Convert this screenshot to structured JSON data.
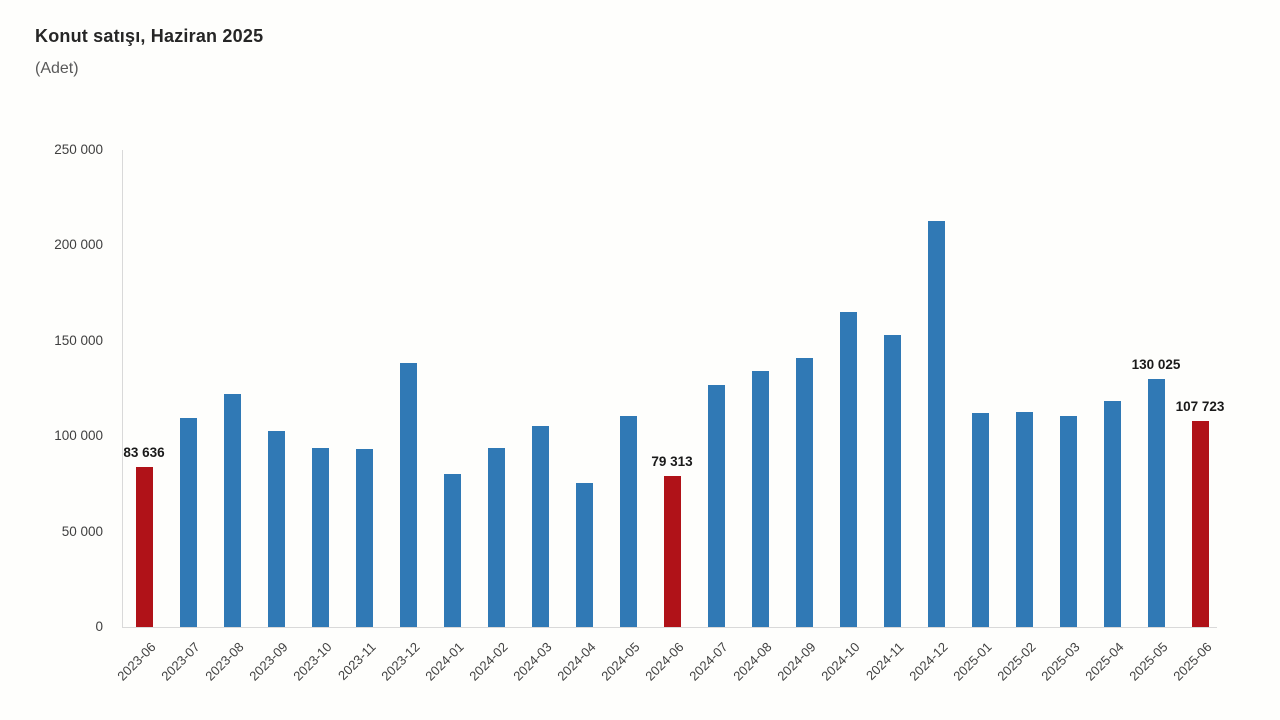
{
  "header": {
    "title": "Konut satışı, Haziran 2025",
    "subtitle": "(Adet)"
  },
  "chart_data": {
    "type": "bar",
    "title": "Konut satışı, Haziran 2025",
    "subtitle_unit": "(Adet)",
    "grid": "off",
    "legend": "none",
    "categories": [
      "2023-06",
      "2023-07",
      "2023-08",
      "2023-09",
      "2023-10",
      "2023-11",
      "2023-12",
      "2024-01",
      "2024-02",
      "2024-03",
      "2024-04",
      "2024-05",
      "2024-06",
      "2024-07",
      "2024-08",
      "2024-09",
      "2024-10",
      "2024-11",
      "2024-12",
      "2025-01",
      "2025-02",
      "2025-03",
      "2025-04",
      "2025-05",
      "2025-06"
    ],
    "values": [
      83636,
      109548,
      122091,
      102656,
      93761,
      93514,
      138577,
      80308,
      93902,
      105476,
      75569,
      110588,
      79313,
      127088,
      134155,
      140919,
      165138,
      152827,
      212637,
      112173,
      112818,
      110795,
      118359,
      130025,
      107723
    ],
    "highlighted_categories": [
      "2023-06",
      "2024-06",
      "2025-06"
    ],
    "annotations": [
      {
        "category": "2023-06",
        "label": "83 636"
      },
      {
        "category": "2024-06",
        "label": "79 313"
      },
      {
        "category": "2025-05",
        "label": "130 025"
      },
      {
        "category": "2025-06",
        "label": "107 723"
      }
    ],
    "y_axis": {
      "min": 0,
      "max": 250000,
      "tick_interval": 50000,
      "tick_labels": [
        "0",
        "50 000",
        "100 000",
        "150 000",
        "200 000",
        "250 000"
      ]
    },
    "x_axis": {
      "label_rotation": -45
    },
    "colors": {
      "bar": "#3079b5",
      "highlight": "#b01218",
      "axis_line": "#d9d9d9",
      "tick_text": "#404040",
      "value_label_text": "#1a1a1a"
    }
  }
}
